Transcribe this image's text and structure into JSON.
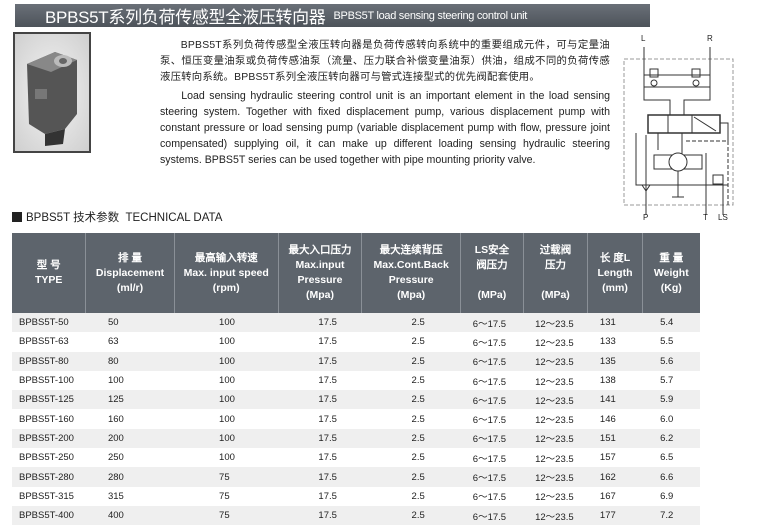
{
  "header": {
    "title_cn": "BPBS5T系列负荷传感型全液压转向器",
    "title_en": "BPBS5T load sensing steering control unit"
  },
  "intro": {
    "cn": "BPBS5T系列负荷传感型全液压转向器是负荷传感转向系统中的重要组成元件，可与定量油泵、恒压变量油泵或负荷传感油泵（流量、压力联合补偿变量油泵）供油，组成不同的负荷传感液压转向系统。BPBS5T系列全液压转向器可与管式连接型式的优先阀配套使用。",
    "en": "Load sensing hydraulic steering control unit is an important element in the load sensing steering system. Together with fixed displacement pump, various displacement pump with constant pressure or load sensing pump (variable displacement pump with flow, pressure joint compensated) supplying oil, it can make up different loading sensing hydraulic steering systems. BPBS5T series can be used together with pipe mounting priority valve."
  },
  "diagram": {
    "labels": {
      "L": "L",
      "R": "R",
      "P": "P",
      "T": "T",
      "LS": "LS"
    }
  },
  "section": {
    "title": "BPBS5T 技术参数  TECHNICAL DATA"
  },
  "table": {
    "headers": [
      [
        "型 号",
        "TYPE"
      ],
      [
        "排 量",
        "Displacement",
        "(ml/r)"
      ],
      [
        "最高输入转速",
        "Max. input speed",
        "(rpm)"
      ],
      [
        "最大入口压力",
        "Max.input",
        "Pressure",
        "(Mpa)"
      ],
      [
        "最大连续背压",
        "Max.Cont.Back",
        "Pressure",
        "(Mpa)"
      ],
      [
        "LS安全",
        "阀压力",
        "",
        "(MPa)"
      ],
      [
        "过载阀",
        "压力",
        "",
        "(MPa)"
      ],
      [
        "长 度L",
        "Length",
        "(mm)"
      ],
      [
        "重 量",
        "Weight",
        "(Kg)"
      ]
    ],
    "rows": [
      [
        "BPBS5T-50",
        "50",
        "100",
        "17.5",
        "2.5",
        "6～17.5",
        "12～23.5",
        "131",
        "5.4"
      ],
      [
        "BPBS5T-63",
        "63",
        "100",
        "17.5",
        "2.5",
        "6～17.5",
        "12～23.5",
        "133",
        "5.5"
      ],
      [
        "BPBS5T-80",
        "80",
        "100",
        "17.5",
        "2.5",
        "6～17.5",
        "12～23.5",
        "135",
        "5.6"
      ],
      [
        "BPBS5T-100",
        "100",
        "100",
        "17.5",
        "2.5",
        "6～17.5",
        "12～23.5",
        "138",
        "5.7"
      ],
      [
        "BPBS5T-125",
        "125",
        "100",
        "17.5",
        "2.5",
        "6～17.5",
        "12～23.5",
        "141",
        "5.9"
      ],
      [
        "BPBS5T-160",
        "160",
        "100",
        "17.5",
        "2.5",
        "6～17.5",
        "12～23.5",
        "146",
        "6.0"
      ],
      [
        "BPBS5T-200",
        "200",
        "100",
        "17.5",
        "2.5",
        "6～17.5",
        "12～23.5",
        "151",
        "6.2"
      ],
      [
        "BPBS5T-250",
        "250",
        "100",
        "17.5",
        "2.5",
        "6～17.5",
        "12～23.5",
        "157",
        "6.5"
      ],
      [
        "BPBS5T-280",
        "280",
        "75",
        "17.5",
        "2.5",
        "6～17.5",
        "12～23.5",
        "162",
        "6.6"
      ],
      [
        "BPBS5T-315",
        "315",
        "75",
        "17.5",
        "2.5",
        "6～17.5",
        "12～23.5",
        "167",
        "6.9"
      ],
      [
        "BPBS5T-400",
        "400",
        "75",
        "17.5",
        "2.5",
        "6～17.5",
        "12～23.5",
        "177",
        "7.2"
      ]
    ]
  }
}
